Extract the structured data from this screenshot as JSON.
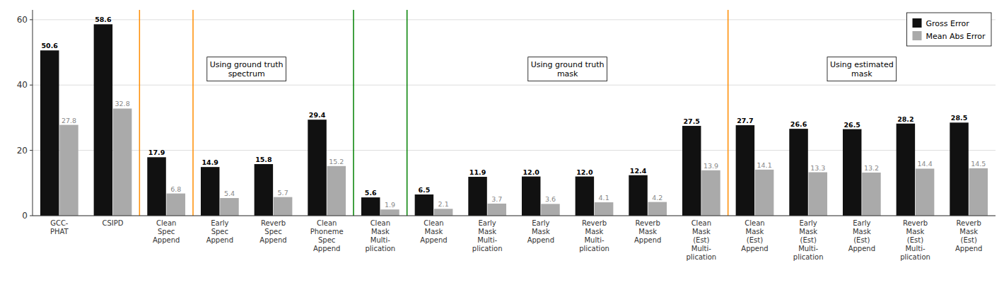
{
  "chart_data": {
    "type": "bar",
    "categories": [
      "GCC-\nPHAT",
      "CSIPD",
      "Clean\nSpec\nAppend",
      "Early\nSpec\nAppend",
      "Reverb\nSpec\nAppend",
      "Clean\nPhoneme\nSpec\nAppend",
      "Clean\nMask\nMulti-\nplication",
      "Clean\nMask\nAppend",
      "Early\nMask\nMulti-\nplication",
      "Early\nMask\nAppend",
      "Reverb\nMask\nMulti-\nplication",
      "Reverb\nMask\nAppend",
      "Clean\nMask\n(Est)\nMulti-\nplication",
      "Clean\nMask\n(Est)\nAppend",
      "Early\nMask\n(Est)\nMulti-\nplication",
      "Early\nMask\n(Est)\nAppend",
      "Reverb\nMask\n(Est)\nMulti-\nplication",
      "Reverb\nMask\n(Est)\nAppend"
    ],
    "series": [
      {
        "name": "Gross Error",
        "color": "#111111",
        "values": [
          50.6,
          58.6,
          17.9,
          14.9,
          15.8,
          29.4,
          5.6,
          6.5,
          11.9,
          12.0,
          12.0,
          12.4,
          27.5,
          27.7,
          26.6,
          26.5,
          28.2,
          28.5
        ],
        "value_labels": [
          "50.6",
          "58.6",
          "17.9",
          "14.9",
          "15.8",
          "29.4",
          "5.6",
          "6.5",
          "11.9",
          "12.0",
          "12.0",
          "12.4",
          "27.5",
          "27.7",
          "26.6",
          "26.5",
          "28.2",
          "28.5"
        ]
      },
      {
        "name": "Mean Abs Error",
        "color": "#aaaaaa",
        "values": [
          27.8,
          32.8,
          6.8,
          5.4,
          5.7,
          15.2,
          1.9,
          2.1,
          3.7,
          3.6,
          4.1,
          4.2,
          13.9,
          14.1,
          13.3,
          13.2,
          14.4,
          14.5
        ],
        "value_labels": [
          "27.8",
          "32.8",
          "6.8",
          "5.4",
          "5.7",
          "15.2",
          "1.9",
          "2.1",
          "3.7",
          "3.6",
          "4.1",
          "4.2",
          "13.9",
          "14.1",
          "13.3",
          "13.2",
          "14.4",
          "14.5"
        ]
      }
    ],
    "ylim": [
      0,
      63
    ],
    "yticks": [
      0,
      20,
      40,
      60
    ],
    "grid": true,
    "legend": "upper right",
    "data_labels": true,
    "dividers": [
      {
        "x": 1.5,
        "color": "darkorange"
      },
      {
        "x": 2.5,
        "color": "darkorange"
      },
      {
        "x": 12.5,
        "color": "darkorange"
      },
      {
        "x": 5.5,
        "color": "green"
      },
      {
        "x": 6.5,
        "color": "green"
      }
    ],
    "annotations": [
      {
        "text": "Using ground truth\nspectrum",
        "x": 3.5,
        "y": 45
      },
      {
        "text": "Using ground truth\nmask",
        "x": 9.5,
        "y": 45
      },
      {
        "text": "Using estimated\nmask",
        "x": 15.0,
        "y": 45
      }
    ]
  }
}
